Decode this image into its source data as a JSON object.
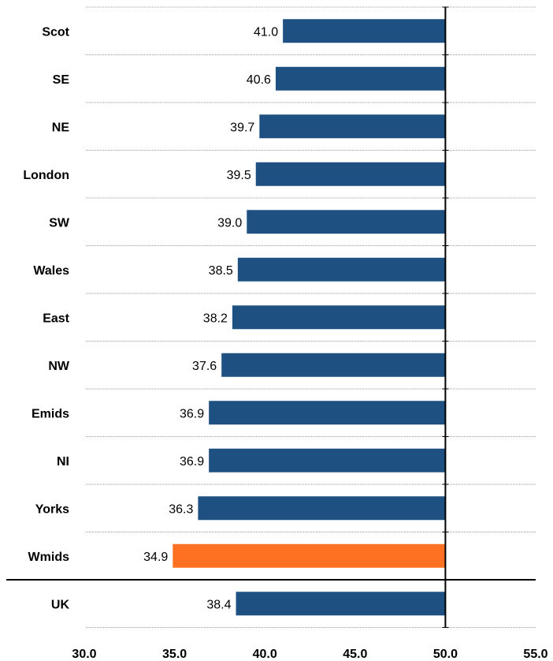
{
  "chart_data": {
    "type": "bar",
    "orientation": "horizontal",
    "categories": [
      "Scot",
      "SE",
      "NE",
      "London",
      "SW",
      "Wales",
      "East",
      "NW",
      "Emids",
      "NI",
      "Yorks",
      "Wmids",
      "UK"
    ],
    "values": [
      41.0,
      40.6,
      39.7,
      39.5,
      39.0,
      38.5,
      38.2,
      37.6,
      36.9,
      36.9,
      36.3,
      34.9,
      38.4
    ],
    "value_labels": [
      "41.0",
      "40.6",
      "39.7",
      "39.5",
      "39.0",
      "38.5",
      "38.2",
      "37.6",
      "36.9",
      "36.9",
      "36.3",
      "34.9",
      "38.4"
    ],
    "bar_baseline": 50.0,
    "highlight_category": "Wmids",
    "xlim": [
      30.0,
      55.0
    ],
    "x_ticks": [
      "30.0",
      "35.0",
      "40.0",
      "45.0",
      "50.0",
      "55.0"
    ],
    "title": "",
    "xlabel": "",
    "ylabel": "",
    "gridlines": "horizontal dotted separators between categories",
    "legend": "none",
    "colors": {
      "bar": "#1F5082",
      "highlight": "#FF7122",
      "grid": "#9a9a9a",
      "axis": "#000000"
    }
  }
}
